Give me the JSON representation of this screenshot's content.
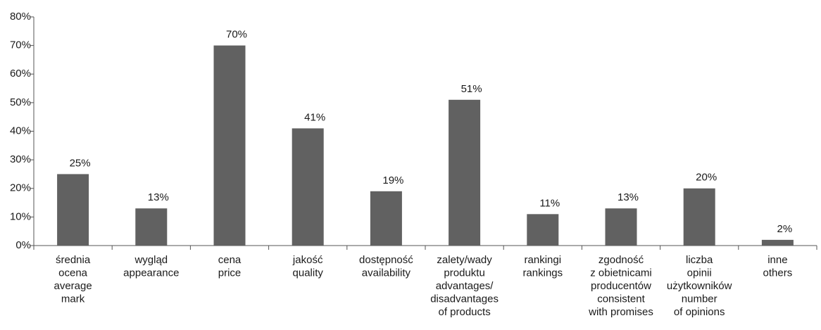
{
  "chart_data": {
    "type": "bar",
    "categories": [
      [
        "średnia",
        "ocena",
        "average",
        "mark"
      ],
      [
        "wygląd",
        "appearance"
      ],
      [
        "cena",
        "price"
      ],
      [
        "jakość",
        "quality"
      ],
      [
        "dostępność",
        "availability"
      ],
      [
        "zalety/wady",
        "produktu",
        "advantages/",
        "disadvantages",
        "of products"
      ],
      [
        "rankingi",
        "rankings"
      ],
      [
        "zgodność",
        "z obietnicami",
        "producentów",
        "consistent",
        "with promises"
      ],
      [
        "liczba",
        "opinii",
        "użytkowników",
        "number",
        "of opinions"
      ],
      [
        "inne",
        "others"
      ]
    ],
    "values": [
      25,
      13,
      70,
      41,
      19,
      51,
      11,
      13,
      20,
      2
    ],
    "value_labels": [
      "25%",
      "13%",
      "70%",
      "41%",
      "19%",
      "51%",
      "11%",
      "13%",
      "20%",
      "2%"
    ],
    "color": "#616161",
    "ylim": [
      0,
      80
    ],
    "yticks": [
      {
        "value": 0,
        "label": "0%"
      },
      {
        "value": 10,
        "label": "10%"
      },
      {
        "value": 20,
        "label": "20%"
      },
      {
        "value": 30,
        "label": "30%"
      },
      {
        "value": 40,
        "label": "40%"
      },
      {
        "value": 50,
        "label": "50%"
      },
      {
        "value": 60,
        "label": "60%"
      },
      {
        "value": 70,
        "label": "70%"
      },
      {
        "value": 80,
        "label": "80%"
      }
    ],
    "grid": false
  }
}
